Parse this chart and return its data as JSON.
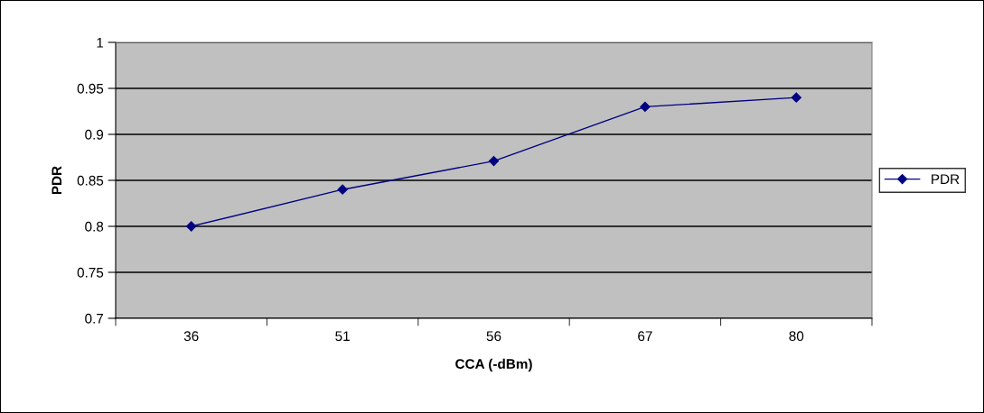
{
  "chart_data": {
    "type": "line",
    "xlabel": "CCA (-dBm)",
    "ylabel": "PDR",
    "categories": [
      "36",
      "51",
      "56",
      "67",
      "80"
    ],
    "series": [
      {
        "name": "PDR",
        "color": "#000080",
        "values": [
          0.8,
          0.84,
          0.871,
          0.93,
          0.94
        ]
      }
    ],
    "ylim": [
      0.7,
      1
    ],
    "yticks": [
      {
        "value": 0.7,
        "label": "0.7"
      },
      {
        "value": 0.75,
        "label": "0.75"
      },
      {
        "value": 0.8,
        "label": "0.8"
      },
      {
        "value": 0.85,
        "label": "0.85"
      },
      {
        "value": 0.9,
        "label": "0.9"
      },
      {
        "value": 0.95,
        "label": "0.95"
      },
      {
        "value": 1,
        "label": "1"
      }
    ],
    "grid": "y",
    "legend": "right",
    "marker": "diamond",
    "line_style": "solid"
  }
}
